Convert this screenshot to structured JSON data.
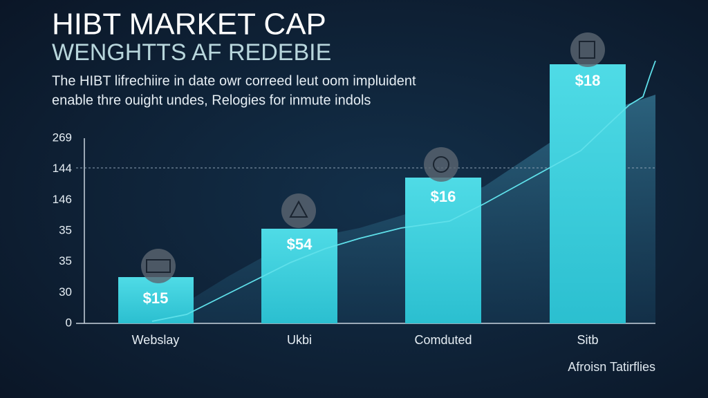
{
  "header": {
    "title": "HIBT MARKET CAP",
    "subtitle": "WENGHTTS AF REDEBIE",
    "description": [
      "The HIBT lifrechiire in date owr correed leut oom impluident",
      "enable thre ouight undes, Relogies for inmute indols"
    ]
  },
  "axis": {
    "labels": [
      "269",
      "144",
      "146",
      "35",
      "35",
      "30",
      "0"
    ]
  },
  "bars": [
    {
      "category": "Webslay",
      "label": "$15"
    },
    {
      "category": "Ukbi",
      "label": "$54"
    },
    {
      "category": "Comduted",
      "label": "$16"
    },
    {
      "category": "Sitb",
      "label": "$18"
    }
  ],
  "footnote": "Afroisn Tatirflies"
}
